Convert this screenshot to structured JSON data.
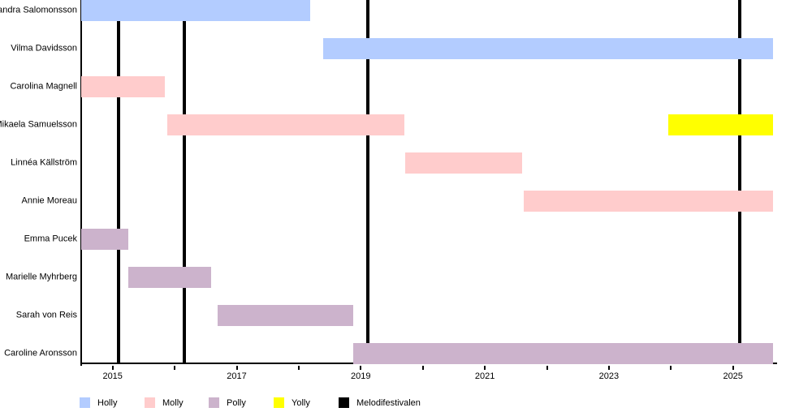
{
  "chart_data": {
    "type": "gantt",
    "title": "",
    "xlabel": "",
    "ylabel": "",
    "grid": false,
    "legend_position": "bottom",
    "x_axis": {
      "range": [
        2014.49,
        2025.66
      ],
      "minor_tick_years": [
        2015,
        2016,
        2017,
        2018,
        2019,
        2020,
        2021,
        2022,
        2023,
        2024,
        2025
      ],
      "labeled_ticks": [
        "2015",
        "2017",
        "2019",
        "2021",
        "2023",
        "2025"
      ],
      "labeled_tick_years": [
        2015,
        2017,
        2019,
        2021,
        2023,
        2025
      ]
    },
    "groups": [
      {
        "name": "Holly",
        "color": "#b3ccff"
      },
      {
        "name": "Molly",
        "color": "#ffcccc"
      },
      {
        "name": "Polly",
        "color": "#ccb3cc"
      },
      {
        "name": "Yolly",
        "color": "#ffff00"
      },
      {
        "name": "Melodifestivalen",
        "color": "#000000"
      }
    ],
    "members": [
      {
        "name": "Alexandra Salomonsson",
        "segments": [
          {
            "group": "Holly",
            "start": 2014.49,
            "end": 2018.19
          }
        ]
      },
      {
        "name": "Vilma Davidsson",
        "segments": [
          {
            "group": "Holly",
            "start": 2018.39,
            "end": 2025.64
          }
        ]
      },
      {
        "name": "Carolina Magnell",
        "segments": [
          {
            "group": "Molly",
            "start": 2014.49,
            "end": 2015.84
          }
        ]
      },
      {
        "name": "Mikaela Samuelsson",
        "segments": [
          {
            "group": "Molly",
            "start": 2015.88,
            "end": 2019.71
          },
          {
            "group": "Yolly",
            "start": 2023.96,
            "end": 2025.64
          }
        ]
      },
      {
        "name": "Linnéa Källström",
        "segments": [
          {
            "group": "Molly",
            "start": 2019.72,
            "end": 2021.6
          }
        ]
      },
      {
        "name": "Annie Moreau",
        "segments": [
          {
            "group": "Molly",
            "start": 2021.62,
            "end": 2025.64
          }
        ]
      },
      {
        "name": "Emma Pucek",
        "segments": [
          {
            "group": "Polly",
            "start": 2014.49,
            "end": 2015.25
          }
        ]
      },
      {
        "name": "Marielle Myhrberg",
        "segments": [
          {
            "group": "Polly",
            "start": 2015.25,
            "end": 2016.59
          }
        ]
      },
      {
        "name": "Sarah von Reis",
        "segments": [
          {
            "group": "Polly",
            "start": 2016.69,
            "end": 2018.88
          }
        ]
      },
      {
        "name": "Caroline Aronsson",
        "segments": [
          {
            "group": "Polly",
            "start": 2018.88,
            "end": 2025.64
          }
        ]
      }
    ],
    "event_lines": {
      "group": "Melodifestivalen",
      "years": [
        2015.1,
        2016.16,
        2019.11,
        2025.11
      ]
    },
    "legend": [
      "Holly",
      "Molly",
      "Polly",
      "Yolly",
      "Melodifestivalen"
    ]
  }
}
